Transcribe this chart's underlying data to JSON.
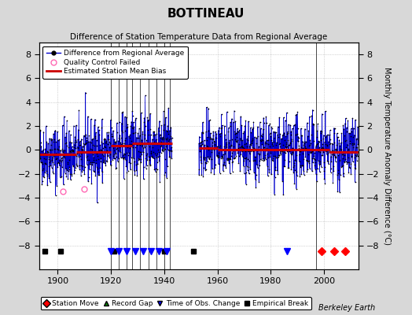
{
  "title": "BOTTINEAU",
  "subtitle": "Difference of Station Temperature Data from Regional Average",
  "ylabel": "Monthly Temperature Anomaly Difference (°C)",
  "xlabel_years": [
    1900,
    1920,
    1940,
    1960,
    1980,
    2000
  ],
  "ylim": [
    -10,
    9
  ],
  "yticks": [
    -8,
    -6,
    -4,
    -2,
    0,
    2,
    4,
    6,
    8
  ],
  "xlim": [
    1893,
    2013
  ],
  "seed": 42,
  "start_year": 1893,
  "end_year": 2012,
  "bias_segments": [
    {
      "x_start": 1893,
      "x_end": 1907,
      "bias": -0.4
    },
    {
      "x_start": 1907,
      "x_end": 1920,
      "bias": -0.2
    },
    {
      "x_start": 1920,
      "x_end": 1928,
      "bias": 0.35
    },
    {
      "x_start": 1928,
      "x_end": 1943,
      "bias": 0.55
    },
    {
      "x_start": 1953,
      "x_end": 1960,
      "bias": 0.15
    },
    {
      "x_start": 1960,
      "x_end": 2002,
      "bias": 0.0
    },
    {
      "x_start": 2002,
      "x_end": 2013,
      "bias": -0.15
    }
  ],
  "vertical_lines": [
    1920,
    1923,
    1926,
    1928,
    1931,
    1934,
    1937,
    1940,
    1942,
    1997
  ],
  "station_moves": [
    1999,
    2004,
    2008
  ],
  "empirical_breaks": [
    1895,
    1901,
    1921,
    1940,
    1951
  ],
  "time_obs_changes": [
    1920,
    1923,
    1926,
    1929,
    1932,
    1935,
    1938,
    1941
  ],
  "time_obs_single": [
    1986
  ],
  "qc_failed_years": [
    1902,
    1910
  ],
  "qc_failed_vals": [
    -3.5,
    -3.3
  ],
  "noise_std": 1.3,
  "background_color": "#d8d8d8",
  "plot_bg_color": "#ffffff",
  "line_color": "#0000cc",
  "bias_color": "#cc0000",
  "grid_color": "#b0b0b0",
  "watermark": "Berkeley Earth",
  "marker_y": -8.5
}
